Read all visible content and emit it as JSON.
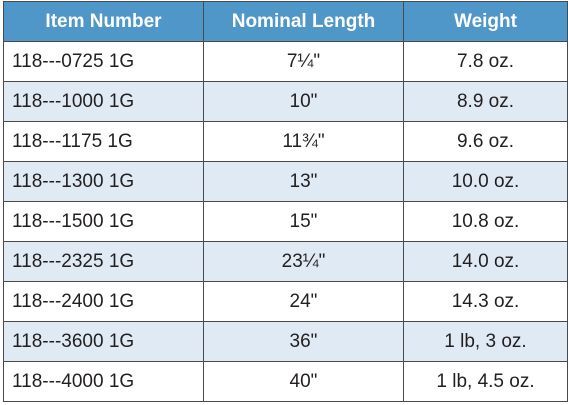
{
  "table": {
    "header_color": "#4f97c9",
    "shade_color": "#dfeaf4",
    "columns": [
      "Item Number",
      "Nominal Length",
      "Weight"
    ],
    "rows": [
      {
        "item": "118---0725 1G",
        "length": "7¼\"",
        "weight": "7.8 oz."
      },
      {
        "item": "118---1000 1G",
        "length": "10\"",
        "weight": "8.9 oz."
      },
      {
        "item": "118---1175 1G",
        "length": "11¾\"",
        "weight": "9.6 oz."
      },
      {
        "item": "118---1300 1G",
        "length": "13\"",
        "weight": "10.0 oz."
      },
      {
        "item": "118---1500 1G",
        "length": "15\"",
        "weight": "10.8 oz."
      },
      {
        "item": "118---2325 1G",
        "length": "23¼\"",
        "weight": "14.0 oz."
      },
      {
        "item": "118---2400 1G",
        "length": "24\"",
        "weight": "14.3 oz."
      },
      {
        "item": "118---3600 1G",
        "length": "36\"",
        "weight": "1 lb, 3 oz."
      },
      {
        "item": "118---4000 1G",
        "length": "40\"",
        "weight": "1 lb, 4.5 oz."
      }
    ]
  }
}
